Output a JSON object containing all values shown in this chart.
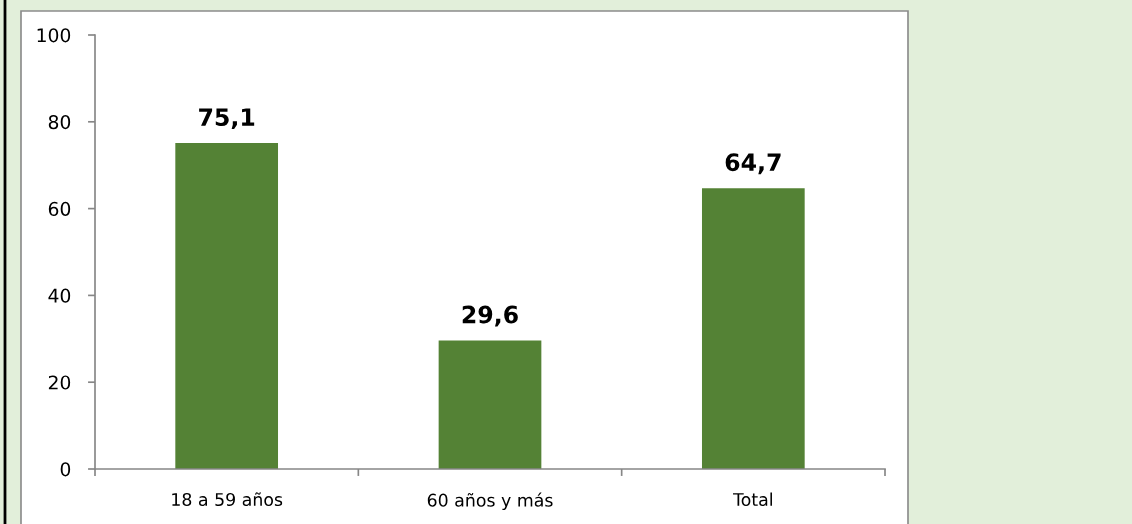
{
  "chart_data": {
    "type": "bar",
    "categories": [
      "18 a 59 años",
      "60 años y más",
      "Total"
    ],
    "values": [
      75.1,
      29.6,
      64.7
    ],
    "color": "#548235",
    "value_labels": [
      "75,1",
      "29,6",
      "64,7"
    ],
    "ylim": [
      0,
      100
    ],
    "yticks": [
      0,
      20,
      40,
      60,
      80,
      100
    ]
  }
}
